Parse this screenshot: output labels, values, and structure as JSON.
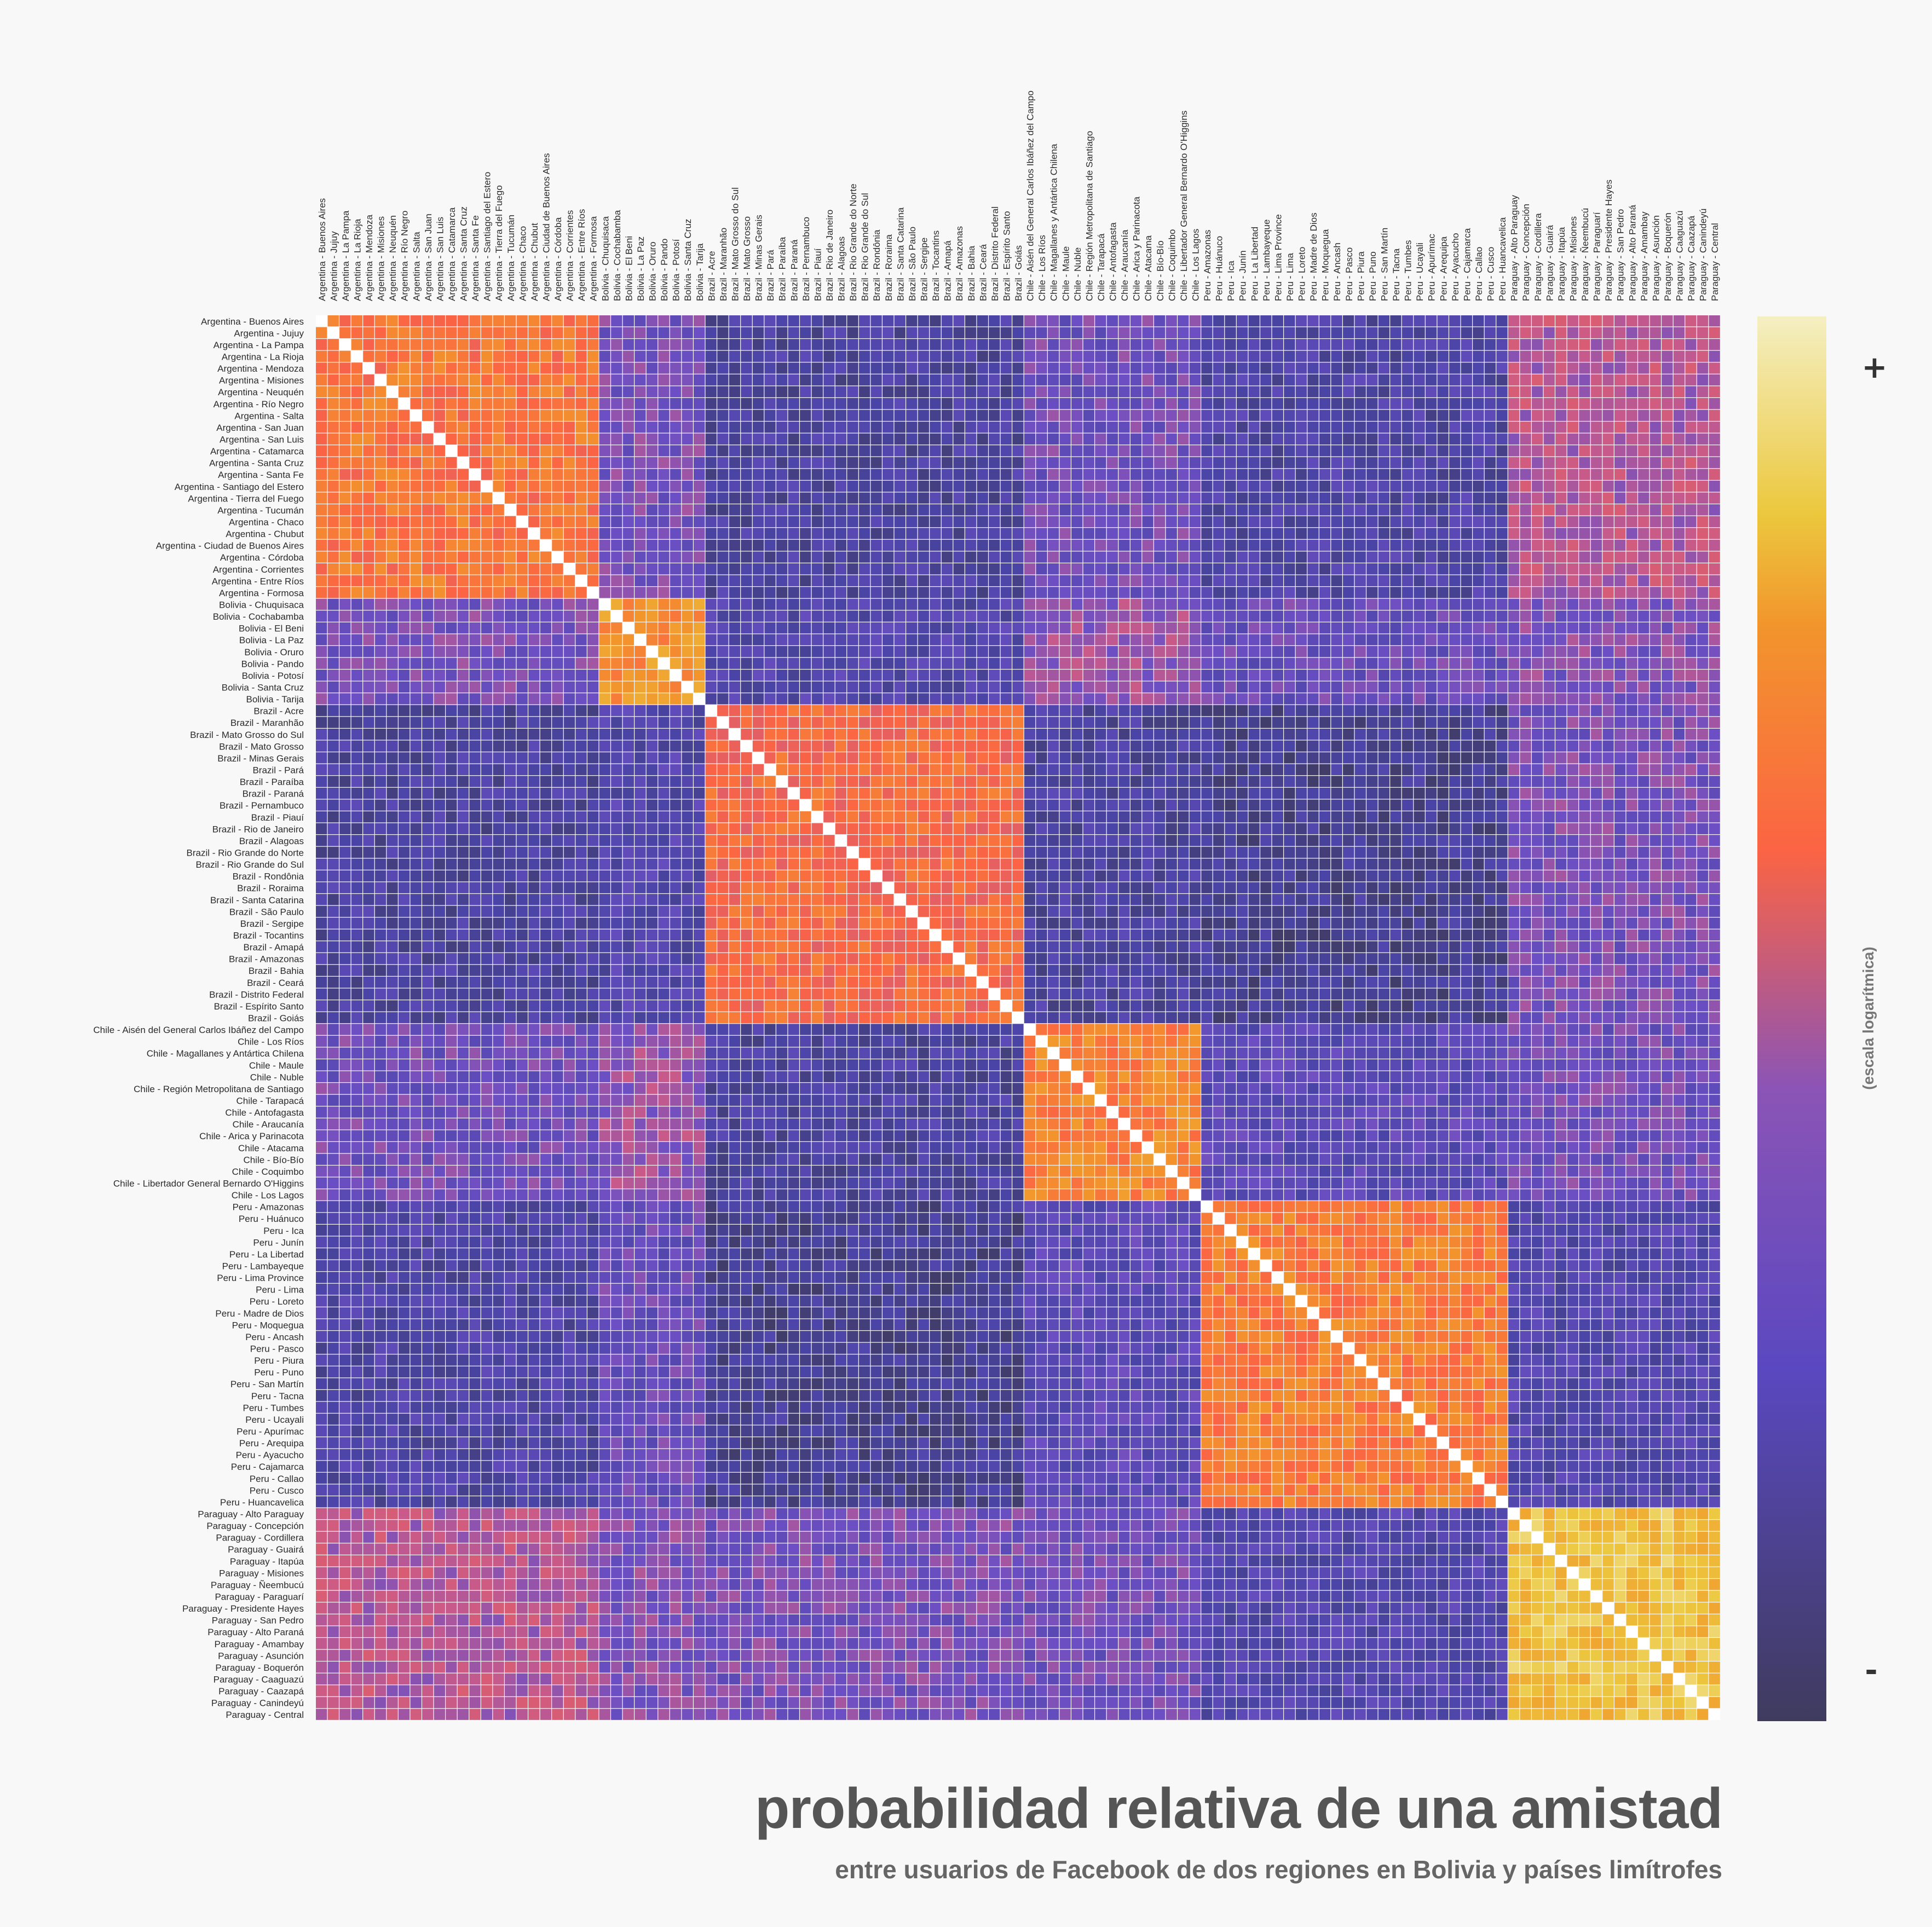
{
  "chart_data": {
    "type": "heatmap",
    "title": "probabilidad relativa de una amistad",
    "subtitle": "entre usuarios de Facebook de dos regiones en Bolivia y países limítrofes",
    "colorbar": {
      "label": "(escala logarítmica)",
      "max_label": "+",
      "min_label": "-",
      "scale": "log"
    },
    "countries": [
      {
        "name": "Argentina",
        "regions": [
          "Buenos Aires",
          "Jujuy",
          "La Pampa",
          "La Rioja",
          "Mendoza",
          "Misiones",
          "Neuquén",
          "Río Negro",
          "Salta",
          "San Juan",
          "San Luis",
          "Catamarca",
          "Santa Cruz",
          "Santa Fe",
          "Santiago del Estero",
          "Tierra del Fuego",
          "Tucumán",
          "Chaco",
          "Chubut",
          "Ciudad de Buenos Aires",
          "Córdoba",
          "Corrientes",
          "Entre Ríos",
          "Formosa"
        ]
      },
      {
        "name": "Bolivia",
        "regions": [
          "Chuquisaca",
          "Cochabamba",
          "El Beni",
          "La Paz",
          "Oruro",
          "Pando",
          "Potosí",
          "Santa Cruz",
          "Tarija"
        ]
      },
      {
        "name": "Brazil",
        "regions": [
          "Acre",
          "Maranhão",
          "Mato Grosso do Sul",
          "Mato Grosso",
          "Minas Gerais",
          "Pará",
          "Paraíba",
          "Paraná",
          "Pernambuco",
          "Piauí",
          "Rio de Janeiro",
          "Alagoas",
          "Rio Grande do Norte",
          "Rio Grande do Sul",
          "Rondônia",
          "Roraima",
          "Santa Catarina",
          "São Paulo",
          "Sergipe",
          "Tocantins",
          "Amapá",
          "Amazonas",
          "Bahia",
          "Ceará",
          "Distrito Federal",
          "Espírito Santo",
          "Goiás"
        ]
      },
      {
        "name": "Chile",
        "regions": [
          "Aisén del General Carlos Ibáñez del Campo",
          "Los Ríos",
          "Magallanes y Antártica Chilena",
          "Maule",
          "Nuble",
          "Región Metropolitana de Santiago",
          "Tarapacá",
          "Antofagasta",
          "Araucanía",
          "Arica y Parinacota",
          "Atacama",
          "Bío-Bío",
          "Coquimbo",
          "Libertador General Bernardo O'Higgins",
          "Los Lagos"
        ]
      },
      {
        "name": "Peru",
        "regions": [
          "Amazonas",
          "Huánuco",
          "Ica",
          "Junín",
          "La Libertad",
          "Lambayeque",
          "Lima Province",
          "Lima",
          "Loreto",
          "Madre de Dios",
          "Moquegua",
          "Ancash",
          "Pasco",
          "Piura",
          "Puno",
          "San Martín",
          "Tacna",
          "Tumbes",
          "Ucayali",
          "Apurímac",
          "Arequipa",
          "Ayacucho",
          "Cajamarca",
          "Callao",
          "Cusco",
          "Huancavelica"
        ]
      },
      {
        "name": "Paraguay",
        "regions": [
          "Alto Paraguay",
          "Concepción",
          "Cordillera",
          "Guairá",
          "Itapúa",
          "Misiones",
          "Ñeembucú",
          "Paraguarí",
          "Presidente Hayes",
          "San Pedro",
          "Alto Paraná",
          "Amambay",
          "Asunción",
          "Boquerón",
          "Caaguazú",
          "Caazapá",
          "Canindeyú",
          "Central"
        ]
      }
    ],
    "block_level": [
      [
        0.62,
        0.3,
        0.14,
        0.28,
        0.16,
        0.4
      ],
      [
        0.3,
        0.7,
        0.18,
        0.36,
        0.26,
        0.32
      ],
      [
        0.14,
        0.18,
        0.58,
        0.14,
        0.1,
        0.3
      ],
      [
        0.28,
        0.36,
        0.14,
        0.66,
        0.22,
        0.28
      ],
      [
        0.16,
        0.26,
        0.1,
        0.22,
        0.64,
        0.18
      ],
      [
        0.4,
        0.32,
        0.3,
        0.28,
        0.18,
        0.84
      ]
    ],
    "colors": [
      "#3f3b5e",
      "#4a44a6",
      "#6c4fc4",
      "#c75a8b",
      "#fb6444",
      "#f2952c",
      "#ecc83e",
      "#f4efc2"
    ]
  }
}
